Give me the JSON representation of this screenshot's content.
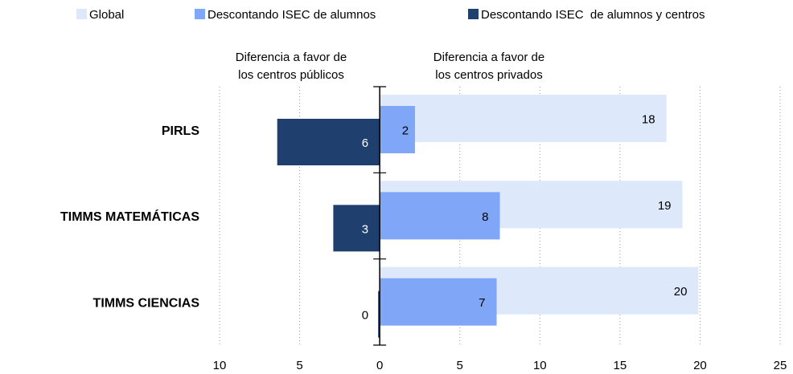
{
  "chart_data": {
    "type": "bar",
    "orientation": "horizontal",
    "categories": [
      "PIRLS",
      "TIMMS MATEMÁTICAS",
      "TIMMS CIENCIAS"
    ],
    "series": [
      {
        "name": "Global",
        "color": "#dde8fb",
        "values": [
          17.9,
          18.9,
          19.9
        ],
        "value_labels": [
          "18",
          "19",
          "20"
        ]
      },
      {
        "name": "Descontando ISEC de alumnos",
        "color": "#80a6f7",
        "values": [
          2.2,
          7.5,
          7.3
        ],
        "value_labels": [
          "2",
          "8",
          "7"
        ]
      },
      {
        "name": "Descontando ISEC  de alumnos y centros",
        "color": "#1f3f6e",
        "values": [
          -6.4,
          -2.9,
          -0.1
        ],
        "value_labels": [
          "6",
          "3",
          "0"
        ]
      }
    ],
    "xlim": [
      -10,
      25
    ],
    "xticks": [
      {
        "value": -10,
        "label": "10"
      },
      {
        "value": -5,
        "label": "5"
      },
      0,
      5,
      10,
      15,
      20,
      25
    ],
    "grid": true,
    "legend": "top",
    "annotations": [
      {
        "lines": [
          "Diferencia a favor de",
          "los centros públicos"
        ]
      },
      {
        "lines": [
          "Diferencia  a favor de",
          "los centros privados"
        ]
      }
    ]
  }
}
